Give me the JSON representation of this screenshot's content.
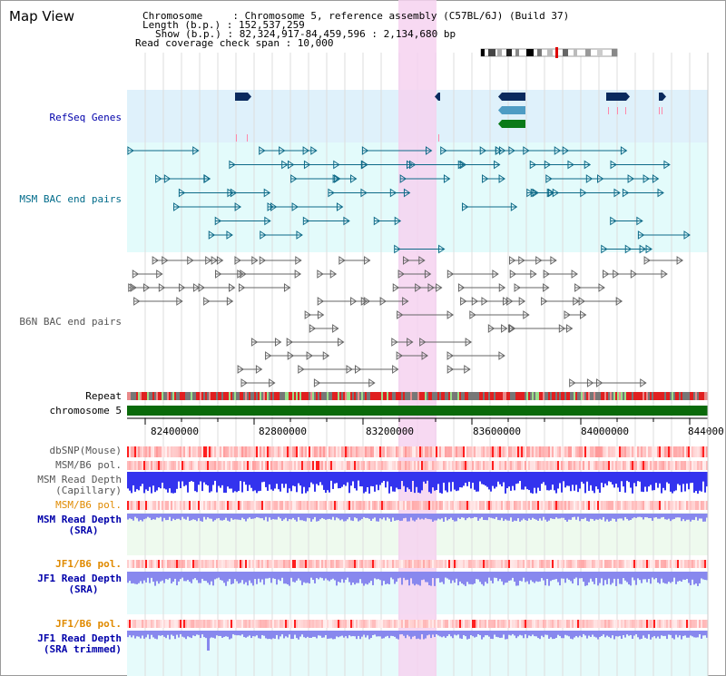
{
  "header": {
    "title": "Map View",
    "info_lines": [
      "Chromosome     : Chromosome 5, reference assembly (C57BL/6J) (Build 37)",
      "Length (b.p.) : 152,537,259",
      "Show (b.p.) : 82,324,917-84,459,596 : 2,134,680 bp",
      "Read coverage check span : 10,000"
    ]
  },
  "tracks": {
    "refseq": "RefSeq Genes",
    "msm_bac": "MSM BAC end pairs",
    "b6n_bac": "B6N BAC end pairs",
    "repeat": "Repeat",
    "chromosome": "chromosome 5",
    "dbsnp": "dbSNP(Mouse)",
    "msm_b6_pol_1": "MSM/B6 pol.",
    "msm_depth_cap": [
      "MSM Read Depth",
      "(Capillary)"
    ],
    "msm_b6_pol_2": "MSM/B6 pol.",
    "msm_depth_sra": [
      "MSM Read Depth",
      "(SRA)"
    ],
    "jf1_b6_pol_1": "JF1/B6 pol.",
    "jf1_depth_sra": [
      "JF1 Read Depth",
      "(SRA)"
    ],
    "jf1_b6_pol_2": "JF1/B6 pol.",
    "jf1_depth_trim": [
      "JF1 Read Depth",
      "(SRA trimmed)"
    ]
  },
  "axis": {
    "ticks": [
      "82400000",
      "82800000",
      "83200000",
      "83600000",
      "84000000",
      "844000"
    ]
  },
  "colors": {
    "refseq_bg": "#dff1fb",
    "msm_bg": "#e3fbfb",
    "highlight": "#f6d2f0",
    "gene_dark": "#0a2a5e",
    "gene_mid": "#4e9cc4",
    "gene_green": "#0a7a18",
    "msm_feature": "#0e6a88",
    "b6n_feature": "#666666",
    "chromosome": "#0a6a0a",
    "depth_blue": "#3333ee",
    "depth_light": "#8888ee",
    "label_navy": "#0000aa",
    "label_teal": "#006b8a",
    "label_orange": "#e08a00"
  }
}
